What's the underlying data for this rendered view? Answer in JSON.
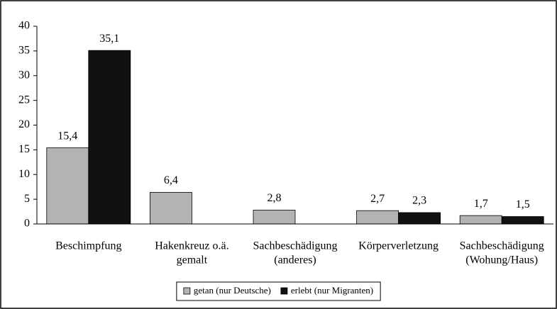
{
  "chart_data": {
    "type": "bar",
    "categories": [
      [
        "Beschimpfung"
      ],
      [
        "Hakenkreuz o.ä.",
        "gemalt"
      ],
      [
        "Sachbeschädigung",
        "(anderes)"
      ],
      [
        "Körperverletzung"
      ],
      [
        "Sachbeschädigung",
        "(Wohung/Haus)"
      ]
    ],
    "series": [
      {
        "name": "getan (nur Deutsche)",
        "color": "#b3b3b3",
        "values": [
          15.4,
          6.4,
          2.8,
          2.7,
          1.7
        ],
        "value_labels": [
          "15,4",
          "6,4",
          "2,8",
          "2,7",
          "1,7"
        ]
      },
      {
        "name": "erlebt (nur Migranten)",
        "color": "#111111",
        "values": [
          35.1,
          null,
          null,
          2.3,
          1.5
        ],
        "value_labels": [
          "35,1",
          null,
          null,
          "2,3",
          "1,5"
        ]
      }
    ],
    "ylim": [
      0,
      40
    ],
    "yticks": [
      0,
      5,
      10,
      15,
      20,
      25,
      30,
      35,
      40
    ],
    "grid": false,
    "legend": "bottom"
  }
}
